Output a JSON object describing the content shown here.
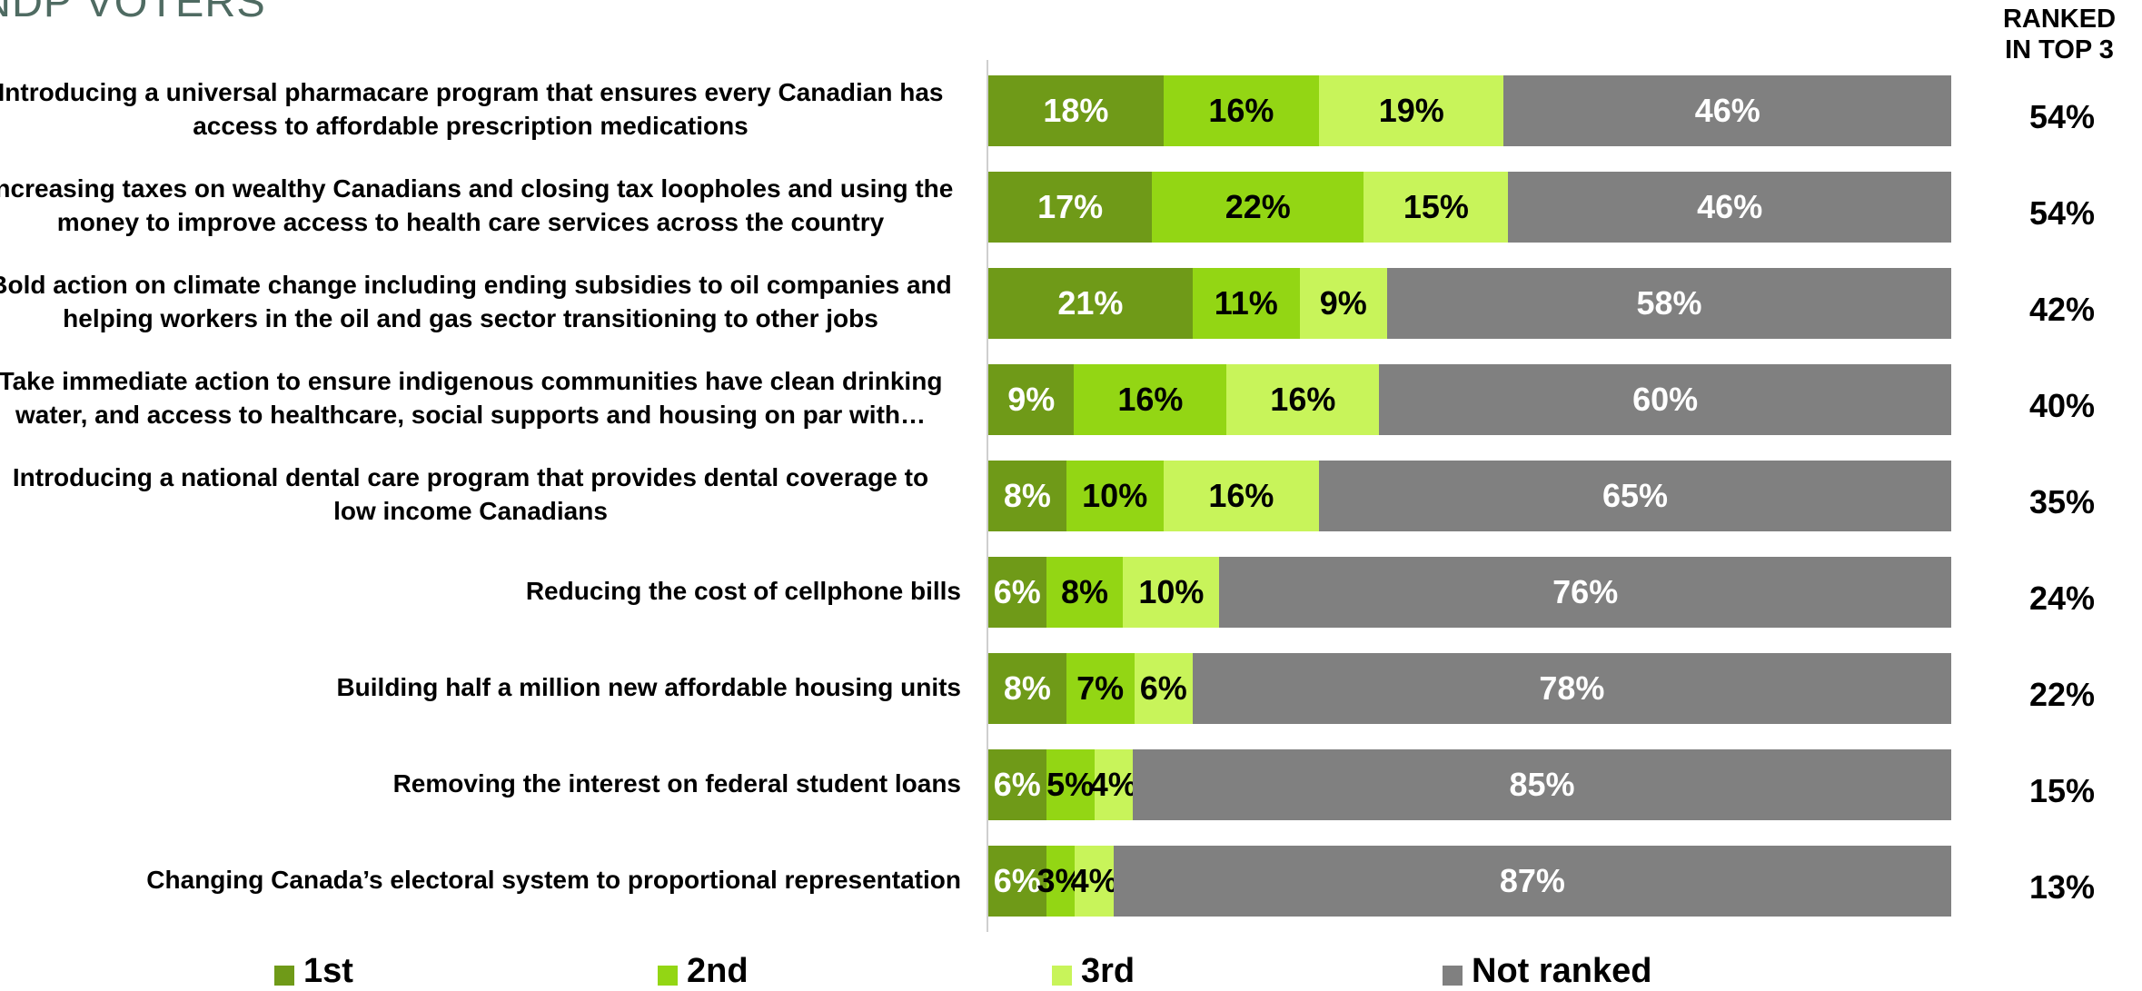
{
  "title": "NDP VOTERS",
  "ranked_header": {
    "line1": "RANKED",
    "line2": "IN TOP 3"
  },
  "colors": {
    "1st": "#6f9a18",
    "2nd": "#93d614",
    "3rd": "#c8f45a",
    "Not ranked": "#808080"
  },
  "chart_data": {
    "type": "bar",
    "orientation": "horizontal",
    "stacked": true,
    "categories": [
      "Introducing a universal pharmacare program that ensures every Canadian has access to affordable prescription medications",
      "Increasing taxes on wealthy Canadians and closing tax loopholes and using the money to improve access to health care services across the country",
      "Bold action on climate change including ending subsidies to oil companies and helping workers in the oil and gas sector transitioning to other jobs",
      "Take immediate action to ensure indigenous communities have clean drinking water, and access to healthcare, social supports and housing on par with…",
      "Introducing a national dental care program that provides dental coverage to low income Canadians",
      "Reducing the cost of cellphone bills",
      "Building half a million new affordable housing units",
      "Removing the interest on federal student loans",
      "Changing Canada’s electoral system to proportional representation"
    ],
    "label_lines": [
      [
        "Introducing a universal pharmacare program that ensures every Canadian has",
        "access to affordable prescription medications"
      ],
      [
        "Increasing taxes on wealthy Canadians and closing tax loopholes and using the",
        "money to improve access to health care services across the country"
      ],
      [
        "Bold action on climate change including ending subsidies to oil companies and",
        "helping workers in the oil and gas sector transitioning to other jobs"
      ],
      [
        "Take immediate action to ensure indigenous communities have clean drinking",
        "water, and access to healthcare, social supports and housing on par with…"
      ],
      [
        "Introducing a national dental care program that provides dental coverage to",
        "low income Canadians"
      ],
      [
        "Reducing the cost of cellphone bills"
      ],
      [
        "Building half a million new affordable housing units"
      ],
      [
        "Removing the interest on federal student loans"
      ],
      [
        "Changing Canada’s electoral system to proportional representation"
      ]
    ],
    "series": [
      {
        "name": "1st",
        "values": [
          18,
          17,
          21,
          9,
          8,
          6,
          8,
          6,
          6
        ]
      },
      {
        "name": "2nd",
        "values": [
          16,
          22,
          11,
          16,
          10,
          8,
          7,
          5,
          3
        ]
      },
      {
        "name": "3rd",
        "values": [
          19,
          15,
          9,
          16,
          16,
          10,
          6,
          4,
          4
        ]
      },
      {
        "name": "Not ranked",
        "values": [
          46,
          46,
          58,
          60,
          65,
          76,
          78,
          85,
          87
        ]
      }
    ],
    "ranked_top3": [
      "54%",
      "54%",
      "42%",
      "40%",
      "35%",
      "24%",
      "22%",
      "15%",
      "13%"
    ],
    "legend_position": "bottom"
  }
}
